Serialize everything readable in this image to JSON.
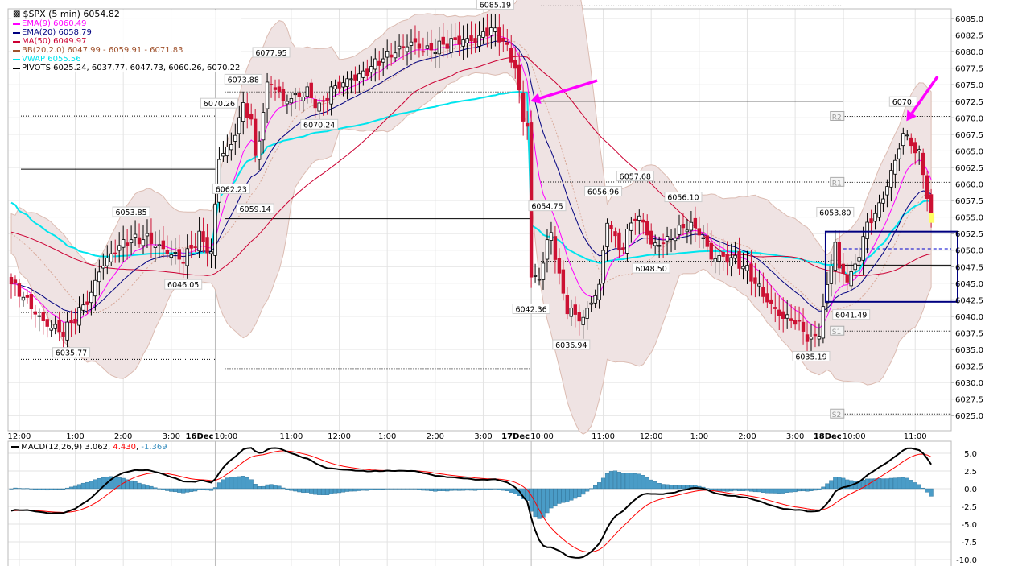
{
  "chart_data": {
    "type": "candlestick",
    "title": "$SPX (5 min) 6054.82",
    "symbol": "$SPX",
    "interval": "5 min",
    "last": 6054.82,
    "ylim": [
      6022.5,
      6087.5
    ],
    "yticks": [
      6025.0,
      6027.5,
      6030.0,
      6032.5,
      6035.0,
      6037.5,
      6040.0,
      6042.5,
      6045.0,
      6047.5,
      6050.0,
      6052.5,
      6055.0,
      6057.5,
      6060.0,
      6062.5,
      6065.0,
      6067.5,
      6070.0,
      6072.5,
      6075.0,
      6077.5,
      6080.0,
      6082.5,
      6085.0
    ],
    "ytick_labels": [
      "6025.0",
      "6027.5",
      "6030.0",
      "6032.5",
      "6035.0",
      "6037.5",
      "6040.0",
      "6042.5",
      "6045.0",
      "6047.5",
      "6050.0",
      "6052.5",
      "6055.0",
      "6057.5",
      "6060.0",
      "6062.5",
      "6065.0",
      "6067.5",
      "6070.0",
      "6072.5",
      "6075.0",
      "6077.5",
      "6080.0",
      "6082.5",
      "6085.0"
    ],
    "bar_count": 231,
    "xticks": [
      {
        "bar": 2,
        "day": "",
        "time": "12:00"
      },
      {
        "bar": 16,
        "day": "",
        "time": "1:00"
      },
      {
        "bar": 28,
        "day": "",
        "time": "2:00"
      },
      {
        "bar": 40,
        "day": "",
        "time": "3:00"
      },
      {
        "bar": 51,
        "day": "16Dec",
        "time": "10:00"
      },
      {
        "bar": 70,
        "day": "",
        "time": "11:00"
      },
      {
        "bar": 82,
        "day": "",
        "time": "12:00"
      },
      {
        "bar": 94,
        "day": "",
        "time": "1:00"
      },
      {
        "bar": 106,
        "day": "",
        "time": "2:00"
      },
      {
        "bar": 118,
        "day": "",
        "time": "3:00"
      },
      {
        "bar": 130,
        "day": "17Dec",
        "time": "10:00"
      },
      {
        "bar": 148,
        "day": "",
        "time": "11:00"
      },
      {
        "bar": 160,
        "day": "",
        "time": "12:00"
      },
      {
        "bar": 172,
        "day": "",
        "time": "1:00"
      },
      {
        "bar": 184,
        "day": "",
        "time": "2:00"
      },
      {
        "bar": 196,
        "day": "",
        "time": "3:00"
      },
      {
        "bar": 208,
        "day": "18Dec",
        "time": "10:00"
      },
      {
        "bar": 226,
        "day": "",
        "time": "11:00"
      }
    ],
    "day_starts": [
      51,
      130,
      208
    ],
    "close_path": [
      [
        0,
        6044.9
      ],
      [
        3,
        6043.4
      ],
      [
        8,
        6039.7
      ],
      [
        13,
        6037.9
      ],
      [
        16,
        6039.7
      ],
      [
        20,
        6042.8
      ],
      [
        22,
        6046.4
      ],
      [
        26,
        6049.5
      ],
      [
        29,
        6051.3
      ],
      [
        34,
        6052.2
      ],
      [
        38,
        6050.7
      ],
      [
        43,
        6048.9
      ],
      [
        47,
        6052.0
      ],
      [
        50,
        6048.9
      ],
      [
        52,
        6063.5
      ],
      [
        55,
        6065.3
      ],
      [
        58,
        6071.4
      ],
      [
        60,
        6069.6
      ],
      [
        61,
        6063.5
      ],
      [
        64,
        6075.0
      ],
      [
        65,
        6075.9
      ],
      [
        68,
        6073.2
      ],
      [
        74,
        6074.2
      ],
      [
        77,
        6071.4
      ],
      [
        80,
        6073.8
      ],
      [
        84,
        6075.0
      ],
      [
        88,
        6076.2
      ],
      [
        92,
        6078.7
      ],
      [
        96,
        6080.5
      ],
      [
        100,
        6082.0
      ],
      [
        104,
        6080.5
      ],
      [
        110,
        6081.1
      ],
      [
        116,
        6081.1
      ],
      [
        120,
        6083.2
      ],
      [
        123,
        6081.7
      ],
      [
        126,
        6078.1
      ],
      [
        128,
        6070.2
      ],
      [
        129,
        6069.6
      ],
      [
        130,
        6046.4
      ],
      [
        132,
        6046.4
      ],
      [
        134,
        6051.3
      ],
      [
        135,
        6053.1
      ],
      [
        137,
        6045.8
      ],
      [
        139,
        6041.0
      ],
      [
        141,
        6039.7
      ],
      [
        143,
        6039.1
      ],
      [
        145,
        6041.6
      ],
      [
        147,
        6044.0
      ],
      [
        149,
        6054.3
      ],
      [
        151,
        6051.3
      ],
      [
        153,
        6050.1
      ],
      [
        155,
        6055.0
      ],
      [
        158,
        6055.0
      ],
      [
        160,
        6051.3
      ],
      [
        164,
        6051.9
      ],
      [
        167,
        6053.1
      ],
      [
        169,
        6053.7
      ],
      [
        172,
        6052.5
      ],
      [
        175,
        6048.3
      ],
      [
        178,
        6048.3
      ],
      [
        181,
        6048.3
      ],
      [
        184,
        6047.0
      ],
      [
        187,
        6044.6
      ],
      [
        190,
        6042.2
      ],
      [
        193,
        6040.4
      ],
      [
        196,
        6039.7
      ],
      [
        200,
        6036.0
      ],
      [
        202,
        6037.3
      ],
      [
        204,
        6044.0
      ],
      [
        206,
        6050.7
      ],
      [
        207,
        6046.4
      ],
      [
        209,
        6045.2
      ],
      [
        211,
        6047.0
      ],
      [
        213,
        6051.9
      ],
      [
        215,
        6055.0
      ],
      [
        217,
        6056.8
      ],
      [
        219,
        6060.4
      ],
      [
        221,
        6064.1
      ],
      [
        223,
        6068.3
      ],
      [
        225,
        6066.5
      ],
      [
        227,
        6064.7
      ],
      [
        229,
        6058.6
      ],
      [
        230,
        6054.8
      ]
    ],
    "annotations": [
      {
        "text": "6035.77",
        "bar": 15,
        "price": 6035.77,
        "pos": "below"
      },
      {
        "text": "6053.85",
        "bar": 30,
        "price": 6053.85,
        "pos": "above"
      },
      {
        "text": "6046.05",
        "bar": 43,
        "price": 6046.05,
        "pos": "below"
      },
      {
        "text": "6070.26",
        "bar": 52,
        "price": 6070.26,
        "pos": "above"
      },
      {
        "text": "6062.23",
        "bar": 55,
        "price": 6060.5,
        "pos": "below"
      },
      {
        "text": "6073.88",
        "bar": 58,
        "price": 6073.88,
        "pos": "above"
      },
      {
        "text": "6059.14",
        "bar": 61,
        "price": 6057.5,
        "pos": "below"
      },
      {
        "text": "6077.95",
        "bar": 65,
        "price": 6077.95,
        "pos": "above"
      },
      {
        "text": "6070.24",
        "bar": 77,
        "price": 6070.24,
        "pos": "below"
      },
      {
        "text": "6085.19",
        "bar": 121,
        "price": 6085.19,
        "pos": "above"
      },
      {
        "text": "6042.36",
        "bar": 130,
        "price": 6042.36,
        "pos": "below"
      },
      {
        "text": "6054.75",
        "bar": 134,
        "price": 6054.75,
        "pos": "above"
      },
      {
        "text": "6036.94",
        "bar": 140,
        "price": 6036.94,
        "pos": "below"
      },
      {
        "text": "6056.96",
        "bar": 148,
        "price": 6056.96,
        "pos": "above"
      },
      {
        "text": "6057.68",
        "bar": 156,
        "price": 6057.68,
        "pos": "above"
      },
      {
        "text": "6056.10",
        "bar": 168,
        "price": 6056.1,
        "pos": "above"
      },
      {
        "text": "6048.50",
        "bar": 160,
        "price": 6048.5,
        "pos": "below"
      },
      {
        "text": "6035.19",
        "bar": 200,
        "price": 6035.19,
        "pos": "below"
      },
      {
        "text": "6053.80",
        "bar": 206,
        "price": 6053.8,
        "pos": "above"
      },
      {
        "text": "6041.49",
        "bar": 210,
        "price": 6041.49,
        "pos": "below"
      },
      {
        "text": "6070.",
        "bar": 223,
        "price": 6070.5,
        "pos": "above"
      }
    ],
    "pivots": {
      "label": "PIVOTS 6025.24, 6037.77, 6047.73, 6060.26, 6070.22",
      "levels": [
        {
          "name": "S2",
          "value": 6025.24
        },
        {
          "name": "S1",
          "value": 6037.77
        },
        {
          "name": "P",
          "value": 6047.73
        },
        {
          "name": "R1",
          "value": 6060.26
        },
        {
          "name": "R2",
          "value": 6070.22
        }
      ]
    },
    "prev_levels": [
      {
        "from": 0,
        "to": 51,
        "value": 6070.26,
        "style": "dotted"
      },
      {
        "from": 0,
        "to": 51,
        "value": 6062.23,
        "style": "solid"
      },
      {
        "from": 0,
        "to": 51,
        "value": 6040.6,
        "style": "dotted"
      },
      {
        "from": 0,
        "to": 51,
        "value": 6033.5,
        "style": "dotted"
      },
      {
        "from": 51,
        "to": 130,
        "value": 6073.9,
        "style": "dotted"
      },
      {
        "from": 51,
        "to": 130,
        "value": 6054.75,
        "style": "solid"
      },
      {
        "from": 51,
        "to": 130,
        "value": 6032.1,
        "style": "dotted"
      },
      {
        "from": 130,
        "to": 208,
        "value": 6086.9,
        "style": "dotted"
      },
      {
        "from": 130,
        "to": 208,
        "value": 6072.5,
        "style": "solid"
      },
      {
        "from": 130,
        "to": 208,
        "value": 6060.3,
        "style": "dotted"
      },
      {
        "from": 130,
        "to": 208,
        "value": 6048.3,
        "style": "dotted"
      }
    ],
    "box": {
      "from_bar": 202,
      "price_top": 6052.8,
      "price_bottom": 6042.2
    },
    "arrows": [
      {
        "to_bar": 129,
        "to_price": 6072.5,
        "color": "#ff00ff"
      },
      {
        "to_bar": 223,
        "to_price": 6069.5,
        "color": "#ff00ff"
      }
    ],
    "legend": [
      {
        "label": "EMA(9) 6060.49",
        "color": "#ff00ff"
      },
      {
        "label": "EMA(20) 6058.79",
        "color": "#000080"
      },
      {
        "label": "MA(50) 6049.97",
        "color": "#cc0033"
      },
      {
        "label": "BB(20,2.0) 6047.99 - 6059.91 - 6071.83",
        "color": "#a0522d"
      },
      {
        "label": "VWAP 6055.56",
        "color": "#00e5ee"
      },
      {
        "label": "PIVOTS 6025.24, 6037.77, 6047.73, 6060.26, 6070.22",
        "color": "#000000"
      }
    ],
    "macd": {
      "label": "MACD(12,26,9)",
      "macd": "3.062",
      "signal": "4.430",
      "hist": "-1.369",
      "ylim": [
        -10.5,
        6.5
      ],
      "yticks": [
        5.0,
        2.5,
        0.0,
        -2.5,
        -5.0,
        -7.5,
        -10.0
      ],
      "ytick_labels": [
        "5.0",
        "2.5",
        "0.0",
        "-2.5",
        "-5.0",
        "-7.5",
        "-10.0"
      ],
      "colors": {
        "macd": "#000000",
        "signal": "#ff0000",
        "hist": "#4a9cc7"
      }
    },
    "colors": {
      "up": "#ffffff",
      "down": "#cc1133",
      "bb_fill": "#efe3e3",
      "grid": "#e3e3e3"
    }
  }
}
